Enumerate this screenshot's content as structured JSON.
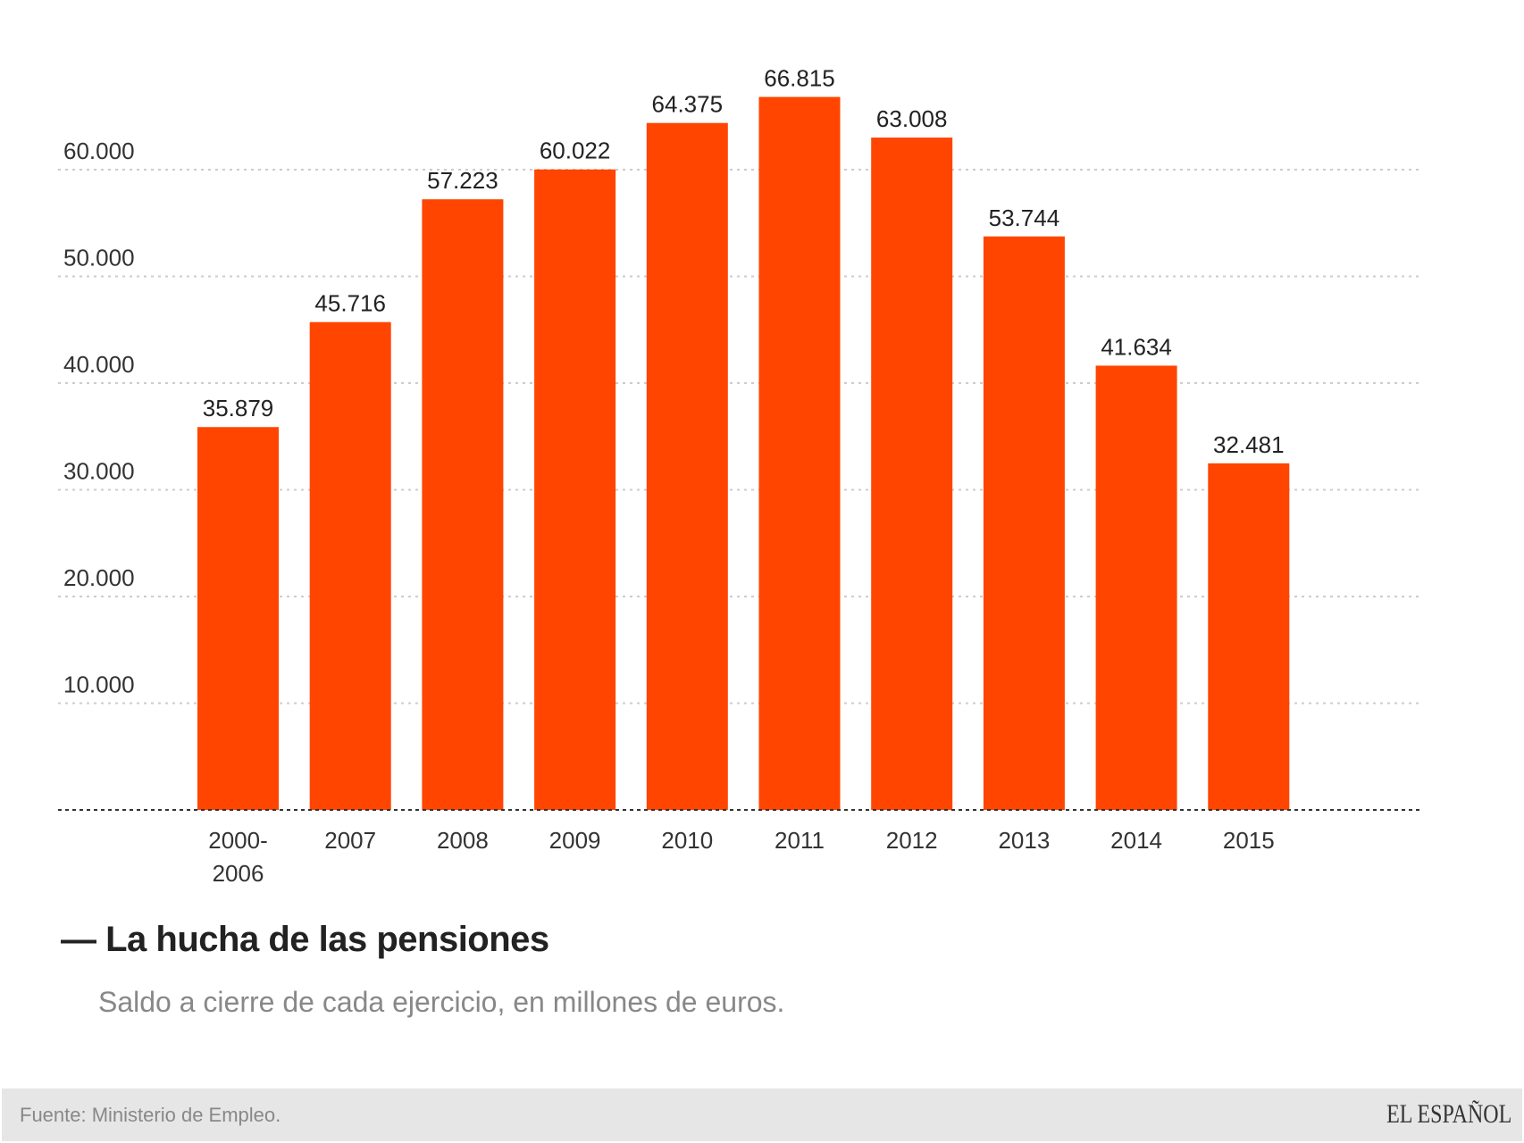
{
  "chart_data": {
    "type": "bar",
    "title": "La hucha de las pensiones",
    "subtitle": "Saldo a cierre de cada ejercicio, en millones de euros.",
    "categories": [
      [
        "2000-",
        "2006"
      ],
      [
        "2007"
      ],
      [
        "2008"
      ],
      [
        "2009"
      ],
      [
        "2010"
      ],
      [
        "2011"
      ],
      [
        "2012"
      ],
      [
        "2013"
      ],
      [
        "2014"
      ],
      [
        "2015"
      ]
    ],
    "values": [
      35879,
      45716,
      57223,
      60022,
      64375,
      66815,
      63008,
      53744,
      41634,
      32481
    ],
    "value_labels": [
      "35.879",
      "45.716",
      "57.223",
      "60.022",
      "64.375",
      "66.815",
      "63.008",
      "53.744",
      "41.634",
      "32.481"
    ],
    "yticks": [
      10000,
      20000,
      30000,
      40000,
      50000,
      60000
    ],
    "ytick_labels": [
      "10.000",
      "20.000",
      "30.000",
      "40.000",
      "50.000",
      "60.000"
    ],
    "ylim": [
      0,
      70000
    ],
    "grid": true,
    "bar_color": "#ff4500"
  },
  "title_prefix": "—",
  "footer": {
    "source": "Fuente: Ministerio de Empleo.",
    "logo": "EL ESPAÑOL"
  }
}
